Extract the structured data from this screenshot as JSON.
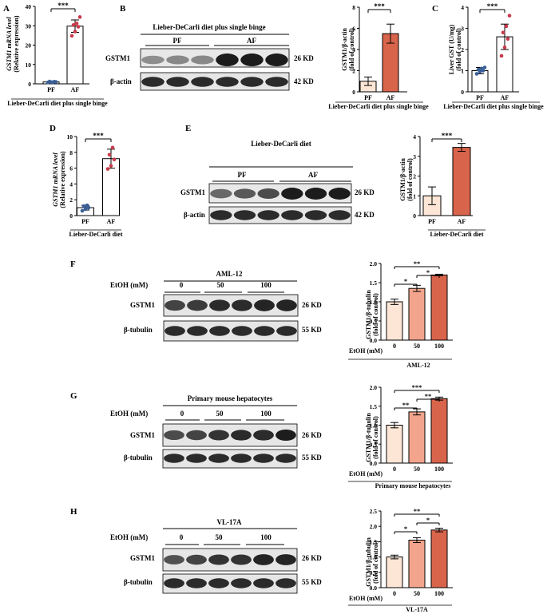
{
  "figure": {
    "panels": {
      "A": {
        "letter": "A",
        "ylabel": "GSTM1 mRNA level",
        "ylabel2": "(Relative expression)",
        "xlabel": "Lieber-DeCarli diet plus single binge",
        "sig": "***"
      },
      "B": {
        "letter": "B",
        "blot_title": "Lieber-DeCarli diet plus single binge",
        "group1": "PF",
        "group2": "AF",
        "row1": "GSTM1",
        "row2": "β-actin",
        "size1": "26 KD",
        "size2": "42 KD",
        "ylabel": "GSTM1/β-actin",
        "ylabel2": "(fold of control)",
        "xlabel": "Lieber-DeCarli diet plus single binge",
        "sig": "***"
      },
      "C": {
        "letter": "C",
        "ylabel": "Liver GST (U/mg)",
        "ylabel2": "(fold of control)",
        "xlabel": "Lieber-DeCarli diet plus single binge",
        "sig": "***"
      },
      "D": {
        "letter": "D",
        "ylabel": "GSTM1 mRNA level",
        "ylabel2": "(Relative expression)",
        "xlabel": "Lieber-DeCarli diet",
        "sig": "***"
      },
      "E": {
        "letter": "E",
        "blot_title": "Lieber-DeCarli diet",
        "group1": "PF",
        "group2": "AF",
        "row1": "GSTM1",
        "row2": "β-actin",
        "size1": "26 KD",
        "size2": "42 KD",
        "ylabel": "GSTM1/β-actin",
        "ylabel2": "(fold of control)",
        "xlabel": "Lieber-DeCarli diet",
        "sig": "***"
      },
      "F": {
        "letter": "F",
        "blot_title": "AML-12",
        "treat": "EtOH (mM)",
        "doses": [
          "0",
          "50",
          "100"
        ],
        "row1": "GSTM1",
        "row2": "β-tubulin",
        "size1": "26 KD",
        "size2": "55 KD",
        "ylabel": "GSTM1/β-tubulin",
        "ylabel2": "(fold of control)",
        "xlabel": "AML-12",
        "sigs": [
          "*",
          "*",
          "**"
        ]
      },
      "G": {
        "letter": "G",
        "blot_title": "Primary mouse hepatocytes",
        "treat": "EtOH (mM)",
        "doses": [
          "0",
          "50",
          "100"
        ],
        "row1": "GSTM1",
        "row2": "β-tubulin",
        "size1": "26 KD",
        "size2": "55 KD",
        "ylabel": "GSTM1/β-tubulin",
        "ylabel2": "(fold of control)",
        "xlabel": "Primary mouse hepatocytes",
        "sigs": [
          "**",
          "**",
          "***"
        ]
      },
      "H": {
        "letter": "H",
        "blot_title": "VL-17A",
        "treat": "EtOH (mM)",
        "doses": [
          "0",
          "50",
          "100"
        ],
        "row1": "GSTM1",
        "row2": "β-tubulin",
        "size1": "26 KD",
        "size2": "55 KD",
        "ylabel": "GSTM1/β-tubulin",
        "ylabel2": "(fold of control)",
        "xlabel": "VL-17A",
        "sigs": [
          "*",
          "*",
          "**"
        ]
      }
    },
    "colors": {
      "pf": "#3a5f96",
      "af": "#c93a4a",
      "bar_light": "#fde6d6",
      "bar_mid": "#f2a58c",
      "bar_dark": "#d9644c",
      "band": "#1c1c1c"
    }
  },
  "chart_data": [
    {
      "panel": "A",
      "type": "bar",
      "categories": [
        "PF",
        "AF"
      ],
      "values": [
        1.0,
        29.8
      ],
      "errors": [
        0.3,
        3.2
      ],
      "ylim": [
        0,
        40
      ],
      "yticks": [
        0,
        10,
        20,
        30,
        40
      ],
      "points": [
        [
          0.7,
          0.9,
          1.1,
          1.2,
          0.8,
          1.0
        ],
        [
          24.8,
          27.0,
          29.5,
          30.4,
          31.2,
          34.5
        ]
      ]
    },
    {
      "panel": "B",
      "type": "bar",
      "categories": [
        "PF",
        "AF"
      ],
      "values": [
        1.0,
        5.5
      ],
      "errors": [
        0.4,
        0.9
      ],
      "ylim": [
        0,
        8
      ],
      "yticks": [
        0,
        2,
        4,
        6,
        8
      ]
    },
    {
      "panel": "C",
      "type": "bar",
      "categories": [
        "PF",
        "AF"
      ],
      "values": [
        1.0,
        2.6
      ],
      "errors": [
        0.15,
        0.6
      ],
      "ylim": [
        0,
        4
      ],
      "yticks": [
        0,
        1,
        2,
        3,
        4
      ],
      "points": [
        [
          0.85,
          0.95,
          1.0,
          1.05,
          1.1,
          1.15
        ],
        [
          1.7,
          2.1,
          2.5,
          2.8,
          3.1,
          3.6
        ]
      ]
    },
    {
      "panel": "D",
      "type": "bar",
      "categories": [
        "PF",
        "AF"
      ],
      "values": [
        1.0,
        7.2
      ],
      "errors": [
        0.3,
        1.2
      ],
      "ylim": [
        0,
        10
      ],
      "yticks": [
        0,
        2,
        4,
        6,
        8,
        10
      ],
      "points": [
        [
          0.6,
          0.8,
          1.0,
          1.2,
          1.3
        ],
        [
          5.9,
          6.3,
          7.1,
          7.7,
          8.6
        ]
      ]
    },
    {
      "panel": "E",
      "type": "bar",
      "categories": [
        "PF",
        "AF"
      ],
      "values": [
        1.0,
        3.45
      ],
      "errors": [
        0.45,
        0.2
      ],
      "ylim": [
        0,
        4
      ],
      "yticks": [
        0,
        1,
        2,
        3,
        4
      ]
    },
    {
      "panel": "F",
      "type": "bar",
      "categories": [
        "0",
        "50",
        "100"
      ],
      "values": [
        1.0,
        1.35,
        1.7
      ],
      "errors": [
        0.07,
        0.08,
        0.02
      ],
      "ylim": [
        0,
        2.0
      ],
      "yticks": [
        0,
        0.5,
        1.0,
        1.5,
        2.0
      ]
    },
    {
      "panel": "G",
      "type": "bar",
      "categories": [
        "0",
        "50",
        "100"
      ],
      "values": [
        1.0,
        1.35,
        1.7
      ],
      "errors": [
        0.07,
        0.08,
        0.04
      ],
      "ylim": [
        0,
        2.0
      ],
      "yticks": [
        0,
        0.5,
        1.0,
        1.5,
        2.0
      ]
    },
    {
      "panel": "H",
      "type": "bar",
      "categories": [
        "0",
        "50",
        "100"
      ],
      "values": [
        1.0,
        1.55,
        1.88
      ],
      "errors": [
        0.06,
        0.08,
        0.06
      ],
      "ylim": [
        0,
        2.5
      ],
      "yticks": [
        0,
        0.5,
        1.0,
        1.5,
        2.0,
        2.5
      ]
    }
  ]
}
